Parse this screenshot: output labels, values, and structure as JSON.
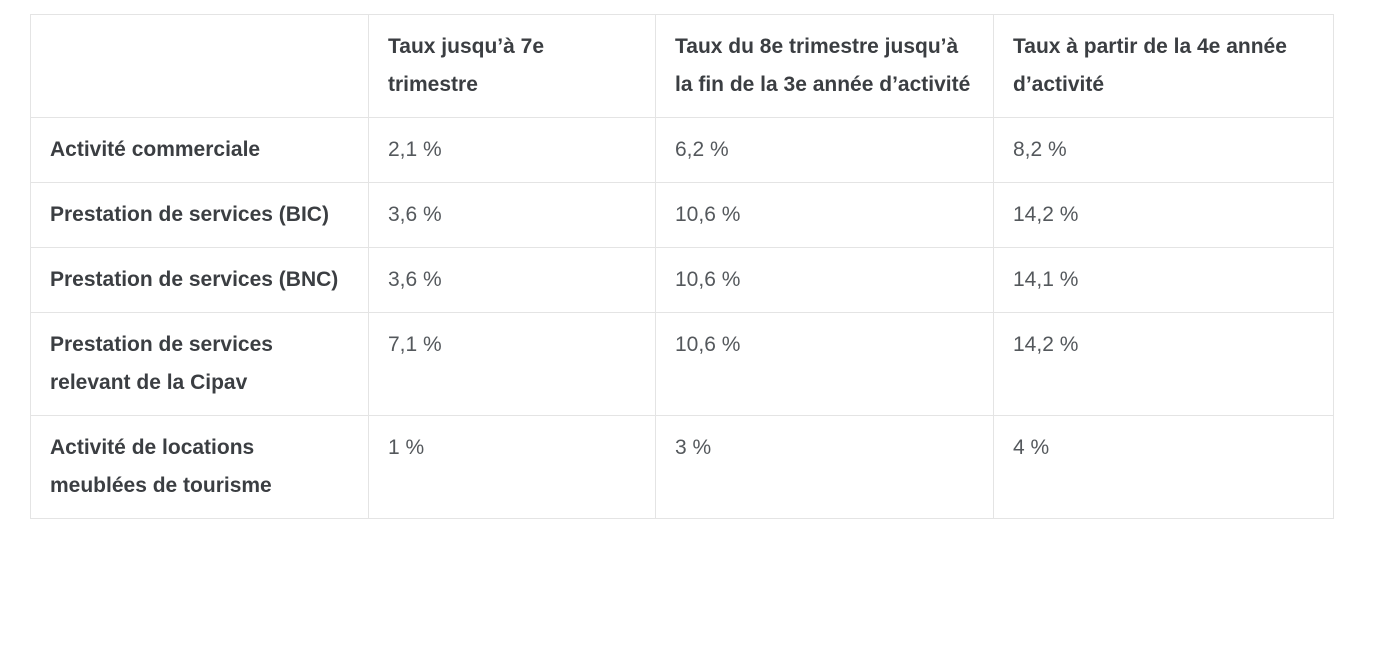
{
  "table": {
    "columns": [
      "",
      "Taux jusqu’à 7e trimestre",
      "Taux du 8e trimestre jusqu’à la fin de la 3e année d’activité",
      "Taux à partir de la 4e année d’activité"
    ],
    "rows": [
      {
        "label": "Activité commerciale",
        "values": [
          "2,1 %",
          "6,2 %",
          "8,2 %"
        ]
      },
      {
        "label": "Prestation de services (BIC)",
        "values": [
          "3,6 %",
          "10,6 %",
          "14,2 %"
        ]
      },
      {
        "label": "Prestation de services (BNC)",
        "values": [
          "3,6 %",
          "10,6 %",
          "14,1 %"
        ]
      },
      {
        "label": "Prestation de services relevant de la Cipav",
        "values": [
          "7,1 %",
          "10,6 %",
          "14,2 %"
        ]
      },
      {
        "label": "Activité de locations meublées de tourisme",
        "values": [
          "1 %",
          "3 %",
          "4 %"
        ]
      }
    ]
  },
  "chart_data": {
    "type": "table",
    "title": "",
    "columns": [
      "",
      "Taux jusqu’à 7e trimestre",
      "Taux du 8e trimestre jusqu’à la fin de la 3e année d’activité",
      "Taux à partir de la 4e année d’activité"
    ],
    "rows": [
      [
        "Activité commerciale",
        "2,1 %",
        "6,2 %",
        "8,2 %"
      ],
      [
        "Prestation de services (BIC)",
        "3,6 %",
        "10,6 %",
        "14,2 %"
      ],
      [
        "Prestation de services (BNC)",
        "3,6 %",
        "10,6 %",
        "14,1 %"
      ],
      [
        "Prestation de services relevant de la Cipav",
        "7,1 %",
        "10,6 %",
        "14,2 %"
      ],
      [
        "Activité de locations meublées de tourisme",
        "1 %",
        "3 %",
        "4 %"
      ]
    ]
  },
  "colors": {
    "border": "#e4e4e4",
    "heading_text": "#3b3e42",
    "value_text": "#54585c",
    "background": "#ffffff"
  }
}
